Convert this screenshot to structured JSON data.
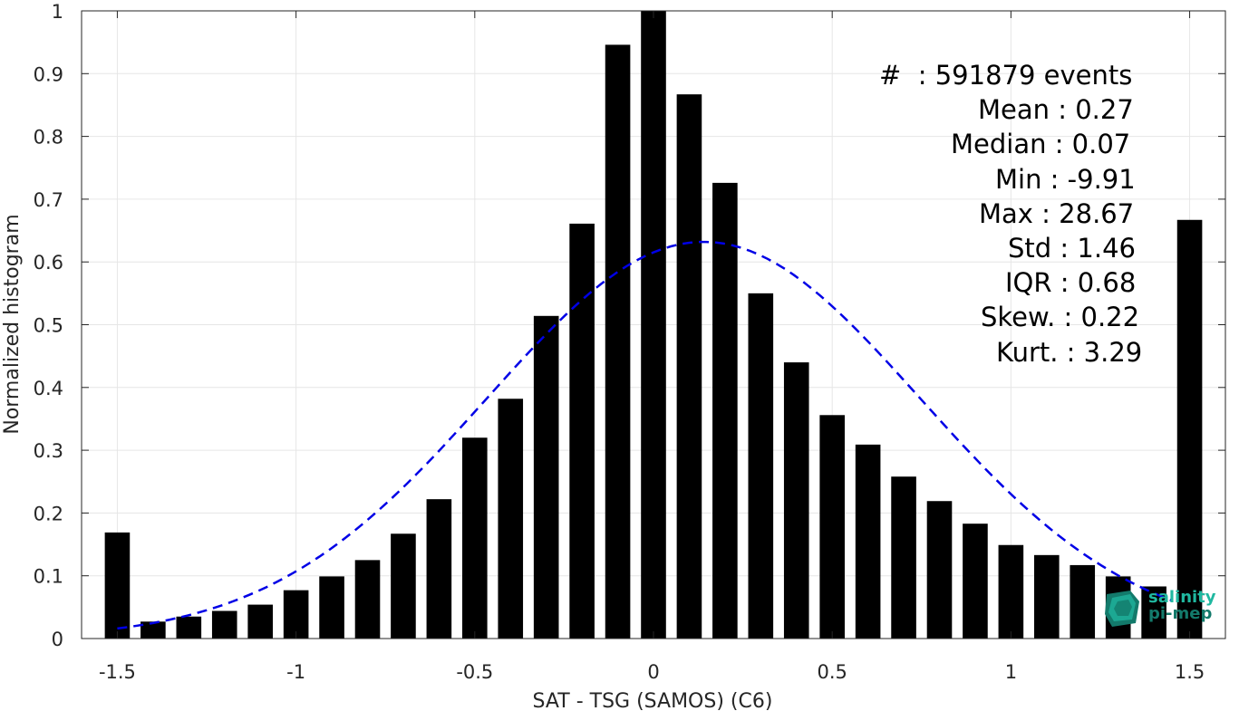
{
  "chart_data": {
    "type": "bar",
    "xlabel": "SAT - TSG (SAMOS) (C6)",
    "ylabel": "Normalized histogram",
    "xlim": [
      -1.6,
      1.6
    ],
    "ylim": [
      0,
      1
    ],
    "grid": true,
    "xticks": [
      -1.5,
      -1,
      -0.5,
      0,
      0.5,
      1,
      1.5
    ],
    "xtick_labels": [
      "-1.5",
      "-1",
      "-0.5",
      "0",
      "0.5",
      "1",
      "1.5"
    ],
    "yticks": [
      0,
      0.1,
      0.2,
      0.3,
      0.4,
      0.5,
      0.6,
      0.7,
      0.8,
      0.9,
      1
    ],
    "ytick_labels": [
      "0",
      "0.1",
      "0.2",
      "0.3",
      "0.4",
      "0.5",
      "0.6",
      "0.7",
      "0.8",
      "0.9",
      "1"
    ],
    "bar_color": "#000000",
    "x": [
      -1.5,
      -1.4,
      -1.3,
      -1.2,
      -1.1,
      -1.0,
      -0.9,
      -0.8,
      -0.7,
      -0.6,
      -0.5,
      -0.4,
      -0.3,
      -0.2,
      -0.1,
      0.0,
      0.1,
      0.2,
      0.3,
      0.4,
      0.5,
      0.6,
      0.7,
      0.8,
      0.9,
      1.0,
      1.1,
      1.2,
      1.3,
      1.4,
      1.5
    ],
    "values": [
      0.169,
      0.027,
      0.035,
      0.044,
      0.054,
      0.077,
      0.099,
      0.125,
      0.167,
      0.222,
      0.32,
      0.382,
      0.514,
      0.661,
      0.946,
      1.0,
      0.867,
      0.726,
      0.55,
      0.44,
      0.356,
      0.309,
      0.258,
      0.219,
      0.183,
      0.149,
      0.133,
      0.117,
      0.099,
      0.083,
      0.667
    ],
    "fit_curve": {
      "style": "dashed",
      "color": "#0000e6",
      "x_range": [
        -1.5,
        1.45
      ],
      "peak_x": 0.14,
      "peak_y": 0.632,
      "sigma": 0.605
    }
  },
  "stats": [
    "#  : 591879 events",
    "Mean : 0.27",
    "Median : 0.07",
    "Min : -9.91",
    "Max : 28.67",
    "Std : 1.46",
    "IQR : 0.68",
    "Skew. : 0.22",
    "Kurt. : 3.29"
  ],
  "logo": {
    "line1": "salinity",
    "line2": "pi-mep",
    "colors": [
      "#20b8a0",
      "#137a6b"
    ]
  }
}
